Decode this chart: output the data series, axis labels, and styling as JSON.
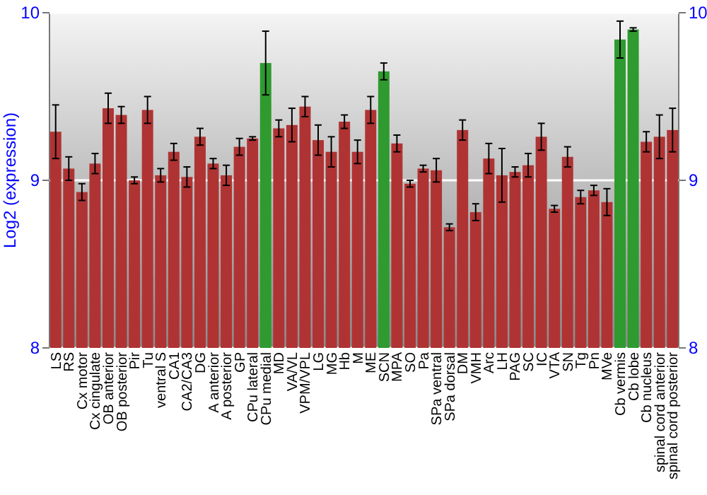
{
  "chart_data": {
    "type": "bar",
    "ylabel": "Log2 (expression)",
    "categories": [
      "LS",
      "RS",
      "Cx motor",
      "Cx cingulate",
      "OB anterior",
      "OB posterior",
      "Pir",
      "Tu",
      "ventral S",
      "CA1",
      "CA2/CA3",
      "DG",
      "A anterior",
      "A posterior",
      "GP",
      "CPu lateral",
      "CPu medial",
      "MD",
      "VA/VL",
      "VPM/VPL",
      "LG",
      "MG",
      "Hb",
      "M",
      "ME",
      "SCN",
      "MPA",
      "SO",
      "Pa",
      "SPa ventral",
      "SPa dorsal",
      "DM",
      "VMH",
      "Arc",
      "LH",
      "PAG",
      "SC",
      "IC",
      "VTA",
      "SN",
      "Tg",
      "Pn",
      "MVe",
      "Cb vermis",
      "Cb lobe",
      "Cb nucleus",
      "spinal cord anterior",
      "spinal cord posterior"
    ],
    "values": [
      9.29,
      9.07,
      8.93,
      9.1,
      9.43,
      9.39,
      9.0,
      9.42,
      9.03,
      9.17,
      9.02,
      9.26,
      9.1,
      9.03,
      9.2,
      9.25,
      9.7,
      9.31,
      9.33,
      9.44,
      9.24,
      9.17,
      9.35,
      9.17,
      9.42,
      9.65,
      9.22,
      8.98,
      9.07,
      9.06,
      8.72,
      9.3,
      8.81,
      9.13,
      9.03,
      9.05,
      9.09,
      9.26,
      8.83,
      9.14,
      8.9,
      8.94,
      8.87,
      9.84,
      9.9,
      9.23,
      9.26,
      9.3
    ],
    "errors": [
      0.16,
      0.07,
      0.05,
      0.06,
      0.09,
      0.05,
      0.02,
      0.08,
      0.04,
      0.05,
      0.06,
      0.05,
      0.03,
      0.06,
      0.05,
      0.01,
      0.19,
      0.05,
      0.1,
      0.06,
      0.09,
      0.09,
      0.04,
      0.07,
      0.08,
      0.05,
      0.05,
      0.02,
      0.02,
      0.07,
      0.02,
      0.06,
      0.05,
      0.09,
      0.16,
      0.03,
      0.07,
      0.08,
      0.02,
      0.06,
      0.04,
      0.03,
      0.08,
      0.11,
      0.01,
      0.06,
      0.13,
      0.13
    ],
    "colors": [
      "#b03333",
      "#b03333",
      "#b03333",
      "#b03333",
      "#b03333",
      "#b03333",
      "#b03333",
      "#b03333",
      "#b03333",
      "#b03333",
      "#b03333",
      "#b03333",
      "#b03333",
      "#b03333",
      "#b03333",
      "#b03333",
      "#2f9a2f",
      "#b03333",
      "#b03333",
      "#b03333",
      "#b03333",
      "#b03333",
      "#b03333",
      "#b03333",
      "#b03333",
      "#2f9a2f",
      "#b03333",
      "#b03333",
      "#b03333",
      "#b03333",
      "#b03333",
      "#b03333",
      "#b03333",
      "#b03333",
      "#b03333",
      "#b03333",
      "#b03333",
      "#b03333",
      "#b03333",
      "#b03333",
      "#b03333",
      "#b03333",
      "#b03333",
      "#2f9a2f",
      "#2f9a2f",
      "#b03333",
      "#b03333",
      "#b03333"
    ],
    "ylim": [
      8,
      10
    ],
    "yticks": [
      8,
      9,
      10
    ],
    "y2lim": [
      8,
      10
    ],
    "y2ticks": [
      8,
      9,
      10
    ],
    "grid": "y"
  }
}
